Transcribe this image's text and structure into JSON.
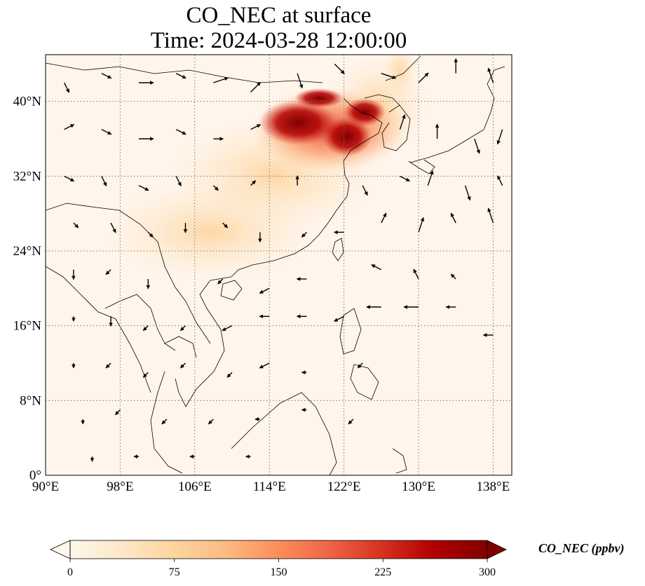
{
  "title": {
    "line1": "CO_NEC at surface",
    "line2": "Time: 2024-03-28 12:00:00"
  },
  "map": {
    "extent": {
      "lon": [
        90,
        140
      ],
      "lat": [
        0,
        45
      ]
    },
    "lon_ticks": [
      {
        "value": 90,
        "label": "90°E"
      },
      {
        "value": 98,
        "label": "98°E"
      },
      {
        "value": 106,
        "label": "106°E"
      },
      {
        "value": 114,
        "label": "114°E"
      },
      {
        "value": 122,
        "label": "122°E"
      },
      {
        "value": 130,
        "label": "130°E"
      },
      {
        "value": 138,
        "label": "138°E"
      }
    ],
    "lat_ticks": [
      {
        "value": 0,
        "label": "0°"
      },
      {
        "value": 8,
        "label": "8°N"
      },
      {
        "value": 16,
        "label": "16°N"
      },
      {
        "value": 24,
        "label": "24°N"
      },
      {
        "value": 32,
        "label": "32°N"
      },
      {
        "value": 40,
        "label": "40°N"
      }
    ],
    "gridlines": "dotted",
    "background_color": "#fff5eb",
    "colormap": "OrRd",
    "plume_hotspots": [
      {
        "lon": 117,
        "lat": 38,
        "intensity": "very high"
      },
      {
        "lon": 120,
        "lat": 36,
        "intensity": "very high"
      },
      {
        "lon": 114,
        "lat": 35,
        "intensity": "high"
      },
      {
        "lon": 124,
        "lat": 40,
        "intensity": "high"
      },
      {
        "lon": 108,
        "lat": 26,
        "intensity": "low"
      },
      {
        "lon": 127,
        "lat": 43,
        "intensity": "low"
      }
    ]
  },
  "colorbar": {
    "label": "CO_NEC (ppbv)",
    "min": 0,
    "max": 300,
    "extend": "both",
    "ticks": [
      {
        "value": 0,
        "label": "0"
      },
      {
        "value": 75,
        "label": "75"
      },
      {
        "value": 150,
        "label": "150"
      },
      {
        "value": 225,
        "label": "225"
      },
      {
        "value": 300,
        "label": "300"
      }
    ],
    "colors": [
      "#fff7ec",
      "#fee8c8",
      "#fdd49e",
      "#fdbb84",
      "#fc8d59",
      "#ef6548",
      "#d7301f",
      "#b30000",
      "#7f0000"
    ]
  },
  "wind_field": {
    "description_free": true,
    "vectors": [
      {
        "lon": 92,
        "lat": 42,
        "u": 1,
        "v": -2
      },
      {
        "lon": 96,
        "lat": 43,
        "u": 2,
        "v": -1
      },
      {
        "lon": 100,
        "lat": 42,
        "u": 3,
        "v": 0
      },
      {
        "lon": 104,
        "lat": 43,
        "u": 2,
        "v": -1
      },
      {
        "lon": 108,
        "lat": 42,
        "u": 3,
        "v": 1
      },
      {
        "lon": 112,
        "lat": 41,
        "u": 2,
        "v": 2
      },
      {
        "lon": 117,
        "lat": 43,
        "u": 1,
        "v": -3
      },
      {
        "lon": 121,
        "lat": 44,
        "u": 2,
        "v": -2
      },
      {
        "lon": 126,
        "lat": 43,
        "u": 3,
        "v": -1
      },
      {
        "lon": 130,
        "lat": 42,
        "u": 2,
        "v": 2
      },
      {
        "lon": 134,
        "lat": 43,
        "u": 0,
        "v": 3
      },
      {
        "lon": 138,
        "lat": 42,
        "u": -1,
        "v": 3
      },
      {
        "lon": 92,
        "lat": 37,
        "u": 2,
        "v": 1
      },
      {
        "lon": 96,
        "lat": 37,
        "u": 2,
        "v": -1
      },
      {
        "lon": 100,
        "lat": 36,
        "u": 3,
        "v": 0
      },
      {
        "lon": 104,
        "lat": 37,
        "u": 2,
        "v": -1
      },
      {
        "lon": 108,
        "lat": 36,
        "u": 2,
        "v": 0
      },
      {
        "lon": 112,
        "lat": 37,
        "u": 2,
        "v": 1
      },
      {
        "lon": 128,
        "lat": 37,
        "u": 1,
        "v": 3
      },
      {
        "lon": 132,
        "lat": 36,
        "u": 0,
        "v": 3
      },
      {
        "lon": 136,
        "lat": 36,
        "u": 1,
        "v": -3
      },
      {
        "lon": 139,
        "lat": 37,
        "u": -1,
        "v": -3
      },
      {
        "lon": 92,
        "lat": 32,
        "u": 2,
        "v": -1
      },
      {
        "lon": 96,
        "lat": 32,
        "u": 1,
        "v": -2
      },
      {
        "lon": 100,
        "lat": 31,
        "u": 2,
        "v": -1
      },
      {
        "lon": 104,
        "lat": 32,
        "u": 1,
        "v": -2
      },
      {
        "lon": 108,
        "lat": 31,
        "u": 1,
        "v": -1
      },
      {
        "lon": 112,
        "lat": 31,
        "u": 1,
        "v": 1
      },
      {
        "lon": 117,
        "lat": 31,
        "u": 0,
        "v": 2
      },
      {
        "lon": 124,
        "lat": 31,
        "u": 1,
        "v": -2
      },
      {
        "lon": 128,
        "lat": 32,
        "u": 2,
        "v": -1
      },
      {
        "lon": 131,
        "lat": 31,
        "u": 1,
        "v": 3
      },
      {
        "lon": 135,
        "lat": 31,
        "u": 1,
        "v": -3
      },
      {
        "lon": 139,
        "lat": 31,
        "u": -1,
        "v": 2
      },
      {
        "lon": 93,
        "lat": 27,
        "u": 1,
        "v": -1
      },
      {
        "lon": 97,
        "lat": 27,
        "u": 1,
        "v": -2
      },
      {
        "lon": 101,
        "lat": 26,
        "u": 1,
        "v": -1
      },
      {
        "lon": 105,
        "lat": 27,
        "u": 0,
        "v": -2
      },
      {
        "lon": 109,
        "lat": 27,
        "u": 1,
        "v": -1
      },
      {
        "lon": 113,
        "lat": 26,
        "u": 0,
        "v": -2
      },
      {
        "lon": 118,
        "lat": 26,
        "u": -1,
        "v": -1
      },
      {
        "lon": 122,
        "lat": 26,
        "u": -2,
        "v": 0
      },
      {
        "lon": 126,
        "lat": 27,
        "u": 1,
        "v": 2
      },
      {
        "lon": 130,
        "lat": 26,
        "u": 1,
        "v": 3
      },
      {
        "lon": 134,
        "lat": 27,
        "u": -1,
        "v": 2
      },
      {
        "lon": 138,
        "lat": 27,
        "u": -1,
        "v": 3
      },
      {
        "lon": 93,
        "lat": 22,
        "u": 0,
        "v": -2
      },
      {
        "lon": 97,
        "lat": 22,
        "u": -1,
        "v": -1
      },
      {
        "lon": 101,
        "lat": 21,
        "u": 0,
        "v": -2
      },
      {
        "lon": 109,
        "lat": 21,
        "u": -1,
        "v": -1
      },
      {
        "lon": 114,
        "lat": 20,
        "u": -2,
        "v": -1
      },
      {
        "lon": 118,
        "lat": 21,
        "u": -2,
        "v": 0
      },
      {
        "lon": 126,
        "lat": 22,
        "u": -2,
        "v": 1
      },
      {
        "lon": 130,
        "lat": 21,
        "u": -1,
        "v": 2
      },
      {
        "lon": 134,
        "lat": 21,
        "u": -1,
        "v": 1
      },
      {
        "lon": 93,
        "lat": 17,
        "u": 0,
        "v": -1
      },
      {
        "lon": 97,
        "lat": 17,
        "u": 0,
        "v": -2
      },
      {
        "lon": 101,
        "lat": 16,
        "u": -1,
        "v": -1
      },
      {
        "lon": 105,
        "lat": 16,
        "u": -1,
        "v": -1
      },
      {
        "lon": 110,
        "lat": 16,
        "u": -2,
        "v": -1
      },
      {
        "lon": 114,
        "lat": 17,
        "u": -2,
        "v": 0
      },
      {
        "lon": 118,
        "lat": 17,
        "u": -2,
        "v": 0
      },
      {
        "lon": 122,
        "lat": 17,
        "u": -2,
        "v": -1
      },
      {
        "lon": 126,
        "lat": 18,
        "u": -3,
        "v": 0
      },
      {
        "lon": 130,
        "lat": 18,
        "u": -3,
        "v": 0
      },
      {
        "lon": 134,
        "lat": 18,
        "u": -2,
        "v": 0
      },
      {
        "lon": 138,
        "lat": 15,
        "u": -2,
        "v": 0
      },
      {
        "lon": 93,
        "lat": 12,
        "u": 0,
        "v": -1
      },
      {
        "lon": 97,
        "lat": 12,
        "u": -1,
        "v": -1
      },
      {
        "lon": 101,
        "lat": 11,
        "u": -1,
        "v": -1
      },
      {
        "lon": 105,
        "lat": 12,
        "u": -1,
        "v": -1
      },
      {
        "lon": 110,
        "lat": 11,
        "u": -1,
        "v": -1
      },
      {
        "lon": 114,
        "lat": 12,
        "u": -2,
        "v": -1
      },
      {
        "lon": 118,
        "lat": 11,
        "u": -1,
        "v": 0
      },
      {
        "lon": 124,
        "lat": 12,
        "u": -1,
        "v": -1
      },
      {
        "lon": 94,
        "lat": 6,
        "u": 0,
        "v": -1
      },
      {
        "lon": 98,
        "lat": 7,
        "u": -1,
        "v": -1
      },
      {
        "lon": 103,
        "lat": 6,
        "u": -1,
        "v": -1
      },
      {
        "lon": 108,
        "lat": 6,
        "u": -1,
        "v": -1
      },
      {
        "lon": 113,
        "lat": 6,
        "u": -1,
        "v": 0
      },
      {
        "lon": 118,
        "lat": 7,
        "u": -1,
        "v": 0
      },
      {
        "lon": 123,
        "lat": 6,
        "u": -1,
        "v": -1
      },
      {
        "lon": 95,
        "lat": 2,
        "u": 0,
        "v": -1
      },
      {
        "lon": 100,
        "lat": 2,
        "u": -1,
        "v": 0
      },
      {
        "lon": 106,
        "lat": 2,
        "u": -1,
        "v": 0
      },
      {
        "lon": 112,
        "lat": 2,
        "u": -1,
        "v": 0
      }
    ]
  }
}
